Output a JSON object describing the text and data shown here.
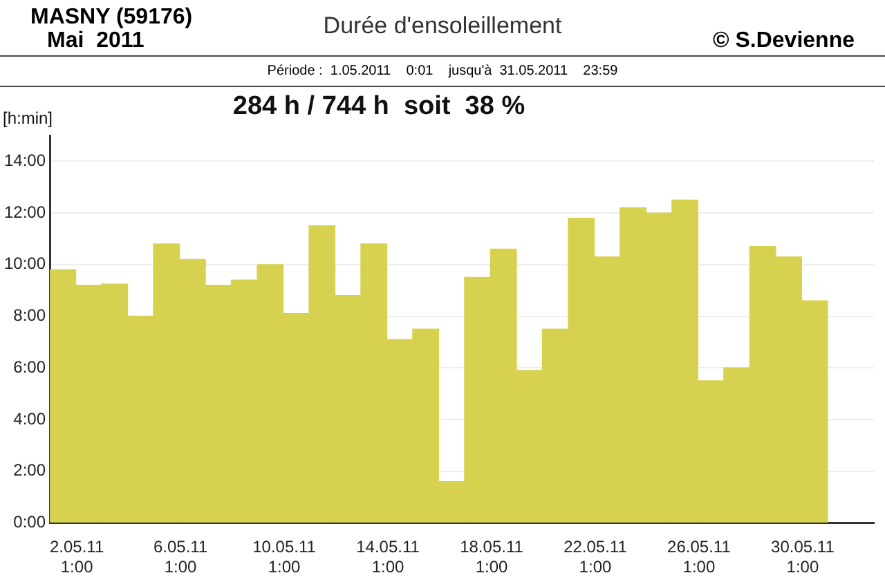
{
  "chart_data": {
    "type": "bar",
    "title": "Durée d'ensoleillement",
    "subtitle": "Période :  1.05.2011    0:01    jusqu'à  31.05.2011    23:59",
    "ylabel": "[h:min]",
    "annotations": [
      "MASNY (59176)",
      "Mai  2011",
      "© S.Devienne",
      "284 h / 744 h  soit  38 %"
    ],
    "x": [
      "2011-05-01T12:00",
      "2011-05-02T12:00",
      "2011-05-03T12:00",
      "2011-05-04T12:00",
      "2011-05-05T12:00",
      "2011-05-06T12:00",
      "2011-05-07T12:00",
      "2011-05-08T12:00",
      "2011-05-09T12:00",
      "2011-05-10T12:00",
      "2011-05-11T12:00",
      "2011-05-12T12:00",
      "2011-05-13T12:00",
      "2011-05-14T12:00",
      "2011-05-15T12:00",
      "2011-05-16T12:00",
      "2011-05-17T12:00",
      "2011-05-18T12:00",
      "2011-05-19T12:00",
      "2011-05-20T12:00",
      "2011-05-21T12:00",
      "2011-05-22T12:00",
      "2011-05-23T12:00",
      "2011-05-24T12:00",
      "2011-05-25T12:00",
      "2011-05-26T12:00",
      "2011-05-27T12:00",
      "2011-05-28T12:00",
      "2011-05-29T12:00",
      "2011-05-30T12:00"
    ],
    "values": [
      9.8,
      9.2,
      9.25,
      8.0,
      10.8,
      10.2,
      9.2,
      9.4,
      10.0,
      8.1,
      11.5,
      8.8,
      10.8,
      7.1,
      7.5,
      1.6,
      9.5,
      10.6,
      5.9,
      7.5,
      11.8,
      10.3,
      12.2,
      12.0,
      12.5,
      5.5,
      6.0,
      10.7,
      10.3,
      8.6
    ],
    "color": "#d6d14f",
    "xlim": [
      "2011-05-01",
      "2011-06-01T19:00"
    ],
    "ylim": [
      0,
      15
    ],
    "xticks": [
      {
        "value": "2011-05-02T01:00",
        "label": "2.05.11 1:00"
      },
      {
        "value": "2011-05-06T01:00",
        "label": "6.05.11 1:00"
      },
      {
        "value": "2011-05-10T01:00",
        "label": "10.05.11 1:00"
      },
      {
        "value": "2011-05-14T01:00",
        "label": "14.05.11 1:00"
      },
      {
        "value": "2011-05-18T01:00",
        "label": "18.05.11 1:00"
      },
      {
        "value": "2011-05-22T01:00",
        "label": "22.05.11 1:00"
      },
      {
        "value": "2011-05-26T01:00",
        "label": "26.05.11 1:00"
      },
      {
        "value": "2011-05-30T01:00",
        "label": "30.05.11 1:00"
      }
    ],
    "yticks": [
      {
        "value": 0,
        "label": "0:00"
      },
      {
        "value": 2,
        "label": "2:00"
      },
      {
        "value": 4,
        "label": "4:00"
      },
      {
        "value": 6,
        "label": "6:00"
      },
      {
        "value": 8,
        "label": "8:00"
      },
      {
        "value": 10,
        "label": "10:00"
      },
      {
        "value": 12,
        "label": "12:00"
      },
      {
        "value": 14,
        "label": "14:00"
      }
    ],
    "grid": "y"
  }
}
